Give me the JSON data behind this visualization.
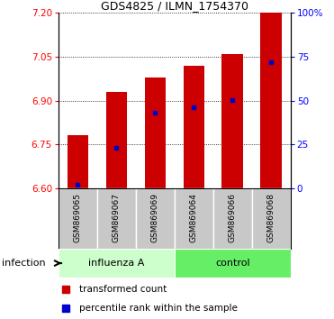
{
  "title": "GDS4825 / ILMN_1754370",
  "samples": [
    "GSM869065",
    "GSM869067",
    "GSM869069",
    "GSM869064",
    "GSM869066",
    "GSM869068"
  ],
  "group_labels": [
    "influenza A",
    "control"
  ],
  "bar_bottom": 6.6,
  "bar_tops": [
    6.78,
    6.93,
    6.98,
    7.02,
    7.06,
    7.2
  ],
  "blue_dot_values": [
    6.612,
    6.737,
    6.858,
    6.878,
    6.902,
    7.032
  ],
  "ylim_left": [
    6.6,
    7.2
  ],
  "ylim_right": [
    0,
    100
  ],
  "yticks_left": [
    6.6,
    6.75,
    6.9,
    7.05,
    7.2
  ],
  "yticks_right": [
    0,
    25,
    50,
    75,
    100
  ],
  "ytick_labels_right": [
    "0",
    "25",
    "50",
    "75",
    "100%"
  ],
  "bar_color": "#cc0000",
  "dot_color": "#0000cc",
  "influenza_color": "#ccffcc",
  "control_color": "#66ee66",
  "tick_area_color": "#c8c8c8",
  "infection_label": "infection",
  "legend_red": "transformed count",
  "legend_blue": "percentile rank within the sample",
  "bar_width": 0.55
}
